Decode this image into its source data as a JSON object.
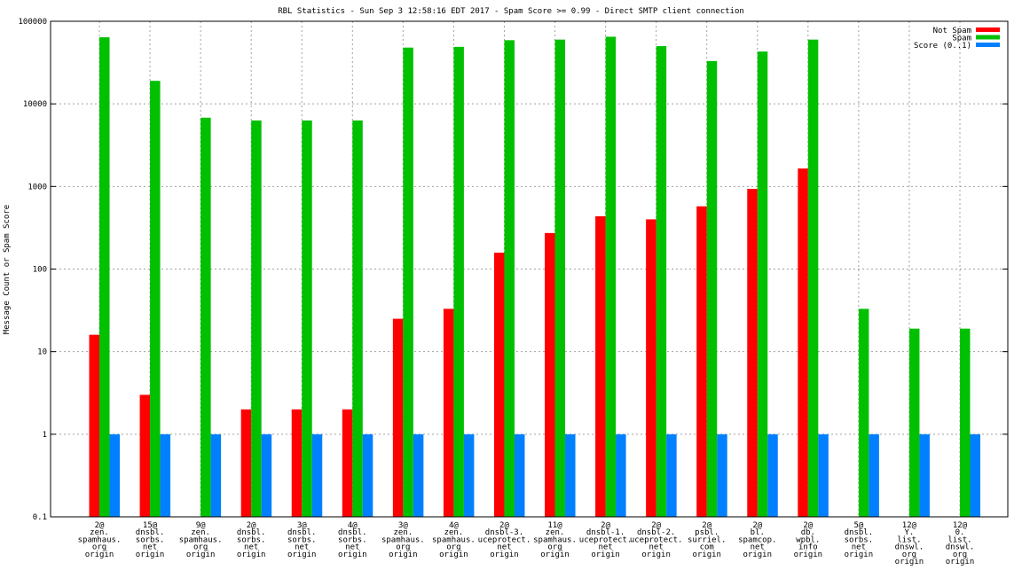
{
  "chart_data": {
    "type": "bar",
    "title": "RBL Statistics - Sun Sep  3 12:58:16 EDT 2017 - Spam Score >= 0.99 - Direct SMTP client connection",
    "xlabel": "",
    "ylabel": "Message Count or Spam Score",
    "yscale": "log",
    "ylim": [
      0.1,
      100000
    ],
    "yticks": [
      "0.1",
      "1",
      "10",
      "100",
      "1000",
      "10000",
      "100000"
    ],
    "grid": true,
    "legend_position": "top-right",
    "categories": [
      [
        "2@",
        "zen.",
        "spamhaus.",
        "org",
        "origin"
      ],
      [
        "15@",
        "dnsbl.",
        "sorbs.",
        "net",
        "origin"
      ],
      [
        "9@",
        "zen.",
        "spamhaus.",
        "org",
        "origin"
      ],
      [
        "2@",
        "dnsbl.",
        "sorbs.",
        "net",
        "origin"
      ],
      [
        "3@",
        "dnsbl.",
        "sorbs.",
        "net",
        "origin"
      ],
      [
        "4@",
        "dnsbl.",
        "sorbs.",
        "net",
        "origin"
      ],
      [
        "3@",
        "zen.",
        "spamhaus.",
        "org",
        "origin"
      ],
      [
        "4@",
        "zen.",
        "spamhaus.",
        "org",
        "origin"
      ],
      [
        "2@",
        "dnsbl-3.",
        "uceprotect.",
        "net",
        "origin"
      ],
      [
        "11@",
        "zen.",
        "spamhaus.",
        "org",
        "origin"
      ],
      [
        "2@",
        "dnsbl-1.",
        "uceprotect.",
        "net",
        "origin"
      ],
      [
        "2@",
        "dnsbl-2.",
        "uceprotect.",
        "net",
        "origin"
      ],
      [
        "2@",
        "psbl.",
        "surriel.",
        "com",
        "origin"
      ],
      [
        "2@",
        "bl.",
        "spamcop.",
        "net",
        "origin"
      ],
      [
        "2@",
        "db.",
        "wpbl.",
        "info",
        "origin"
      ],
      [
        "5@",
        "dnsbl.",
        "sorbs.",
        "net",
        "origin"
      ],
      [
        "12@",
        "Y.",
        "list.",
        "dnswl.",
        "org",
        "origin"
      ],
      [
        "12@",
        "0.",
        "list.",
        "dnswl.",
        "org",
        "origin"
      ]
    ],
    "series": [
      {
        "name": "Not Spam",
        "color": "#ff0000",
        "values": [
          16,
          3,
          null,
          2,
          2,
          2,
          25,
          33,
          158,
          273,
          436,
          400,
          575,
          935,
          1650,
          null,
          null,
          null
        ]
      },
      {
        "name": "Spam",
        "color": "#00c000",
        "values": [
          64000,
          19000,
          6800,
          6300,
          6300,
          6300,
          48000,
          49000,
          59000,
          60000,
          65000,
          50000,
          33000,
          43000,
          60000,
          33,
          19,
          19
        ]
      },
      {
        "name": "Score (0..1)",
        "color": "#0080ff",
        "values": [
          1,
          1,
          1,
          1,
          1,
          1,
          1,
          1,
          1,
          1,
          1,
          1,
          1,
          1,
          1,
          1,
          1,
          1
        ]
      }
    ]
  }
}
